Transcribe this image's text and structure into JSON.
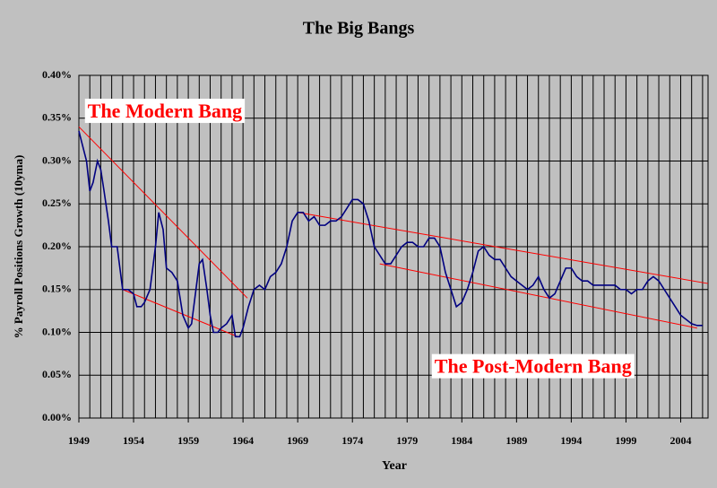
{
  "chart_data": {
    "type": "line",
    "title": "The Big Bangs",
    "x_label": "Year",
    "y_label": "% Payroll Positions Growth (10yma)",
    "xlim": [
      1949,
      2006.5
    ],
    "ylim": [
      0,
      0.4
    ],
    "xticks": [
      1949,
      1954,
      1959,
      1964,
      1969,
      1974,
      1979,
      1984,
      1989,
      1994,
      1999,
      2004
    ],
    "x_grid": [
      1949,
      1950,
      1951,
      1952,
      1953,
      1954,
      1955,
      1956,
      1957,
      1958,
      1959,
      1960,
      1961,
      1962,
      1963,
      1964,
      1965,
      1966,
      1967,
      1968,
      1969,
      1970,
      1971,
      1972,
      1973,
      1974,
      1975,
      1976,
      1977,
      1978,
      1979,
      1980,
      1981,
      1982,
      1983,
      1984,
      1985,
      1986,
      1987,
      1988,
      1989,
      1990,
      1991,
      1992,
      1993,
      1994,
      1995,
      1996,
      1997,
      1998,
      1999,
      2000,
      2001,
      2002,
      2003,
      2004,
      2005,
      2006
    ],
    "yticks": [
      {
        "value": 0,
        "label": "0.00%"
      },
      {
        "value": 0.05,
        "label": "0.05%"
      },
      {
        "value": 0.1,
        "label": "0.10%"
      },
      {
        "value": 0.15,
        "label": "0.15%"
      },
      {
        "value": 0.2,
        "label": "0.20%"
      },
      {
        "value": 0.25,
        "label": "0.25%"
      },
      {
        "value": 0.3,
        "label": "0.30%"
      },
      {
        "value": 0.35,
        "label": "0.35%"
      },
      {
        "value": 0.4,
        "label": "0.40%"
      }
    ],
    "grid": true,
    "x": [
      1949,
      1949.3,
      1949.7,
      1950,
      1950.3,
      1950.7,
      1951,
      1951.3,
      1951.7,
      1952,
      1952.5,
      1953,
      1953.5,
      1954,
      1954.3,
      1954.7,
      1955,
      1955.5,
      1956,
      1956.3,
      1956.7,
      1957,
      1957.5,
      1958,
      1958.5,
      1959,
      1959.3,
      1959.7,
      1960,
      1960.3,
      1960.7,
      1961,
      1961.3,
      1961.7,
      1962,
      1962.5,
      1963,
      1963.3,
      1963.7,
      1964,
      1964.5,
      1965,
      1965.5,
      1966,
      1966.5,
      1967,
      1967.5,
      1968,
      1968.5,
      1969,
      1969.5,
      1970,
      1970.5,
      1971,
      1971.5,
      1972,
      1972.5,
      1973,
      1973.5,
      1974,
      1974.5,
      1975,
      1975.5,
      1976,
      1976.5,
      1977,
      1977.5,
      1978,
      1978.5,
      1979,
      1979.5,
      1980,
      1980.5,
      1981,
      1981.5,
      1982,
      1982.5,
      1983,
      1983.5,
      1984,
      1984.5,
      1985,
      1985.5,
      1986,
      1986.5,
      1987,
      1987.5,
      1988,
      1988.5,
      1989,
      1989.5,
      1990,
      1990.5,
      1991,
      1991.5,
      1992,
      1992.5,
      1993,
      1993.5,
      1994,
      1994.5,
      1995,
      1995.5,
      1996,
      1996.5,
      1997,
      1997.5,
      1998,
      1998.5,
      1999,
      1999.5,
      2000,
      2000.5,
      2001,
      2001.5,
      2002,
      2002.5,
      2003,
      2003.5,
      2004,
      2004.5,
      2005,
      2005.5,
      2006
    ],
    "series": [
      {
        "color": "#000080",
        "values": [
          0.335,
          0.32,
          0.3,
          0.265,
          0.275,
          0.3,
          0.29,
          0.265,
          0.23,
          0.2,
          0.2,
          0.15,
          0.15,
          0.145,
          0.13,
          0.13,
          0.135,
          0.15,
          0.2,
          0.24,
          0.22,
          0.175,
          0.17,
          0.16,
          0.12,
          0.105,
          0.11,
          0.15,
          0.18,
          0.185,
          0.15,
          0.12,
          0.1,
          0.1,
          0.105,
          0.11,
          0.12,
          0.095,
          0.095,
          0.105,
          0.13,
          0.15,
          0.155,
          0.15,
          0.165,
          0.17,
          0.18,
          0.2,
          0.23,
          0.24,
          0.24,
          0.23,
          0.235,
          0.225,
          0.225,
          0.23,
          0.23,
          0.235,
          0.245,
          0.255,
          0.255,
          0.25,
          0.23,
          0.2,
          0.19,
          0.18,
          0.18,
          0.19,
          0.2,
          0.205,
          0.205,
          0.2,
          0.2,
          0.21,
          0.21,
          0.2,
          0.17,
          0.15,
          0.13,
          0.135,
          0.15,
          0.17,
          0.195,
          0.2,
          0.19,
          0.185,
          0.185,
          0.175,
          0.165,
          0.16,
          0.155,
          0.15,
          0.155,
          0.165,
          0.15,
          0.14,
          0.145,
          0.16,
          0.175,
          0.175,
          0.165,
          0.16,
          0.16,
          0.155,
          0.155,
          0.155,
          0.155,
          0.155,
          0.15,
          0.15,
          0.145,
          0.15,
          0.15,
          0.16,
          0.165,
          0.16,
          0.15,
          0.14,
          0.13,
          0.12,
          0.115,
          0.11,
          0.108,
          0.108
        ]
      }
    ],
    "trend_color": "#ff0000",
    "trend_lines": [
      {
        "x": [
          1949,
          1964.4
        ],
        "y": [
          0.34,
          0.14
        ]
      },
      {
        "x": [
          1953,
          1963.5
        ],
        "y": [
          0.15,
          0.095
        ]
      },
      {
        "x": [
          1969,
          2006.5
        ],
        "y": [
          0.24,
          0.157
        ]
      },
      {
        "x": [
          1976.5,
          2005.5
        ],
        "y": [
          0.18,
          0.105
        ]
      }
    ],
    "annotations": [
      {
        "text": "The Modern Bang",
        "x": 1949.8,
        "y": 0.356
      },
      {
        "text": "The Post-Modern Bang",
        "x": 1981.5,
        "y": 0.058
      }
    ]
  }
}
